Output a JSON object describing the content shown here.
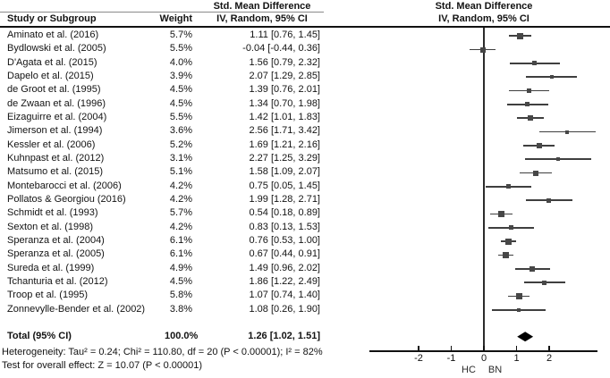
{
  "figure": {
    "columns": {
      "study": "Study or Subgroup",
      "weight": "Weight",
      "effect_line1": "Std. Mean Difference",
      "effect_line2": "IV, Random, 95% CI"
    },
    "plot_header": {
      "line1": "Std. Mean Difference",
      "line2": "IV, Random, 95% CI"
    },
    "total": {
      "label": "Total (95% CI)",
      "weight": "100.0%",
      "effect": "1.26 [1.02, 1.51]"
    },
    "footnotes": {
      "heterogeneity": "Heterogeneity: Tau² = 0.24; Chi² = 110.80, df = 20 (P < 0.00001); I² = 82%",
      "overall_effect": "Test for overall effect: Z = 10.07 (P < 0.00001)"
    }
  },
  "colors": {
    "text": "#131313",
    "ci_line": "#3f3f3f",
    "marker": "#474747",
    "diamond": "#000000",
    "rule": "#111111"
  },
  "chart_data": {
    "type": "forest",
    "title": "Std. Mean Difference",
    "model": "IV, Random, 95% CI",
    "axis": {
      "ticks": [
        -2,
        -1,
        0,
        1,
        2
      ],
      "range": [
        -3.5,
        3.5
      ],
      "label_left": "HC",
      "label_right": "BN"
    },
    "studies": [
      {
        "name": "Aminato et al. (2016)",
        "weight_pct": 5.7,
        "weight": "5.7%",
        "effect_label": "1.11 [0.76, 1.45]",
        "est": 1.11,
        "lo": 0.76,
        "hi": 1.45
      },
      {
        "name": "Bydlowski et al. (2005)",
        "weight_pct": 5.5,
        "weight": "5.5%",
        "effect_label": "-0.04 [-0.44, 0.36]",
        "est": -0.04,
        "lo": -0.44,
        "hi": 0.36
      },
      {
        "name": "D'Agata et al. (2015)",
        "weight_pct": 4.0,
        "weight": "4.0%",
        "effect_label": "1.56 [0.79, 2.32]",
        "est": 1.56,
        "lo": 0.79,
        "hi": 2.32
      },
      {
        "name": "Dapelo et al. (2015)",
        "weight_pct": 3.9,
        "weight": "3.9%",
        "effect_label": "2.07 [1.29, 2.85]",
        "est": 2.07,
        "lo": 1.29,
        "hi": 2.85
      },
      {
        "name": "de Groot et al. (1995)",
        "weight_pct": 4.5,
        "weight": "4.5%",
        "effect_label": "1.39 [0.76, 2.01]",
        "est": 1.39,
        "lo": 0.76,
        "hi": 2.01
      },
      {
        "name": "de Zwaan et al. (1996)",
        "weight_pct": 4.5,
        "weight": "4.5%",
        "effect_label": "1.34 [0.70, 1.98]",
        "est": 1.34,
        "lo": 0.7,
        "hi": 1.98
      },
      {
        "name": "Eizaguirre et al. (2004)",
        "weight_pct": 5.5,
        "weight": "5.5%",
        "effect_label": "1.42 [1.01, 1.83]",
        "est": 1.42,
        "lo": 1.01,
        "hi": 1.83
      },
      {
        "name": "Jimerson et al. (1994)",
        "weight_pct": 3.6,
        "weight": "3.6%",
        "effect_label": "2.56 [1.71, 3.42]",
        "est": 2.56,
        "lo": 1.71,
        "hi": 3.42
      },
      {
        "name": "Kessler et al. (2006)",
        "weight_pct": 5.2,
        "weight": "5.2%",
        "effect_label": "1.69 [1.21, 2.16]",
        "est": 1.69,
        "lo": 1.21,
        "hi": 2.16
      },
      {
        "name": "Kuhnpast et al. (2012)",
        "weight_pct": 3.1,
        "weight": "3.1%",
        "effect_label": "2.27 [1.25, 3.29]",
        "est": 2.27,
        "lo": 1.25,
        "hi": 3.29
      },
      {
        "name": "Matsumo et al. (2015)",
        "weight_pct": 5.1,
        "weight": "5.1%",
        "effect_label": "1.58 [1.09, 2.07]",
        "est": 1.58,
        "lo": 1.09,
        "hi": 2.07
      },
      {
        "name": "Montebarocci et al. (2006)",
        "weight_pct": 4.2,
        "weight": "4.2%",
        "effect_label": "0.75 [0.05, 1.45]",
        "est": 0.75,
        "lo": 0.05,
        "hi": 1.45
      },
      {
        "name": "Pollatos & Georgiou (2016)",
        "weight_pct": 4.2,
        "weight": "4.2%",
        "effect_label": "1.99 [1.28, 2.71]",
        "est": 1.99,
        "lo": 1.28,
        "hi": 2.71
      },
      {
        "name": "Schmidt et al. (1993)",
        "weight_pct": 5.7,
        "weight": "5.7%",
        "effect_label": "0.54 [0.18, 0.89]",
        "est": 0.54,
        "lo": 0.18,
        "hi": 0.89
      },
      {
        "name": "Sexton et al. (1998)",
        "weight_pct": 4.2,
        "weight": "4.2%",
        "effect_label": "0.83 [0.13, 1.53]",
        "est": 0.83,
        "lo": 0.13,
        "hi": 1.53
      },
      {
        "name": "Speranza et al. (2004)",
        "weight_pct": 6.1,
        "weight": "6.1%",
        "effect_label": "0.76 [0.53, 1.00]",
        "est": 0.76,
        "lo": 0.53,
        "hi": 1.0
      },
      {
        "name": "Speranza et al. (2005)",
        "weight_pct": 6.1,
        "weight": "6.1%",
        "effect_label": "0.67 [0.44, 0.91]",
        "est": 0.67,
        "lo": 0.44,
        "hi": 0.91
      },
      {
        "name": "Sureda et al. (1999)",
        "weight_pct": 4.9,
        "weight": "4.9%",
        "effect_label": "1.49 [0.96, 2.02]",
        "est": 1.49,
        "lo": 0.96,
        "hi": 2.02
      },
      {
        "name": "Tchanturia et al. (2012)",
        "weight_pct": 4.5,
        "weight": "4.5%",
        "effect_label": "1.86 [1.22, 2.49]",
        "est": 1.86,
        "lo": 1.22,
        "hi": 2.49
      },
      {
        "name": "Troop et al. (1995)",
        "weight_pct": 5.8,
        "weight": "5.8%",
        "effect_label": "1.07 [0.74, 1.40]",
        "est": 1.07,
        "lo": 0.74,
        "hi": 1.4
      },
      {
        "name": "Zonnevylle-Bender et al. (2002)",
        "weight_pct": 3.8,
        "weight": "3.8%",
        "effect_label": "1.08 [0.26, 1.90]",
        "est": 1.08,
        "lo": 0.26,
        "hi": 1.9
      }
    ],
    "total": {
      "name": "Total (95% CI)",
      "weight": "100.0%",
      "effect_label": "1.26 [1.02, 1.51]",
      "est": 1.26,
      "lo": 1.02,
      "hi": 1.51
    }
  }
}
